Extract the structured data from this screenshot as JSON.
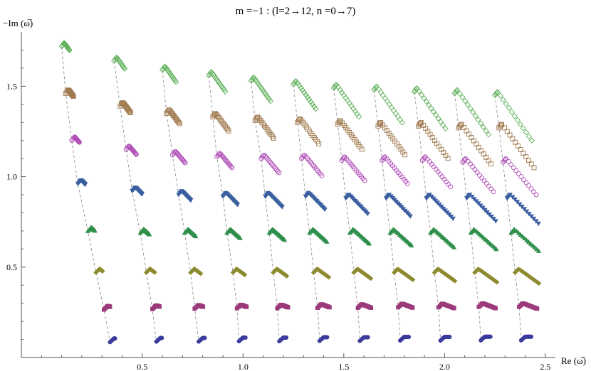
{
  "chart_data": {
    "type": "scatter",
    "title": "m =−1 : (l=2→12, n =0→7)",
    "xlabel": "Re (ω̅)",
    "ylabel": "−Im (ω̅)",
    "xlim": [
      -0.1,
      2.55
    ],
    "ylim": [
      0,
      1.8
    ],
    "x_ticks": [
      "0.5",
      "1.0",
      "1.5",
      "2.0",
      "2.5"
    ],
    "x_tick_values": [
      0.5,
      1.0,
      1.5,
      2.0,
      2.5
    ],
    "y_ticks": [
      "0.5",
      "1.0",
      "1.5"
    ],
    "y_tick_values": [
      0.5,
      1.0,
      1.5
    ],
    "grid": false,
    "legend": "none",
    "l_values": [
      2,
      3,
      4,
      5,
      6,
      7,
      8,
      9,
      10,
      11,
      12
    ],
    "series": [
      {
        "n": 0,
        "marker": "filled-circle",
        "color": "#3b3b9e",
        "x_start": [
          0.34,
          0.57,
          0.78,
          0.98,
          1.18,
          1.38,
          1.58,
          1.78,
          1.98,
          2.18,
          2.38
        ],
        "y_start": [
          0.085,
          0.088,
          0.088,
          0.09,
          0.09,
          0.092,
          0.092,
          0.094,
          0.094,
          0.095,
          0.095
        ],
        "dx": 0.03,
        "dy": 0.0
      },
      {
        "n": 1,
        "marker": "filled-square",
        "color": "#9b3a7a",
        "x_start": [
          0.31,
          0.55,
          0.76,
          0.97,
          1.17,
          1.37,
          1.57,
          1.77,
          1.97,
          2.17,
          2.37
        ],
        "y_start": [
          0.265,
          0.268,
          0.27,
          0.272,
          0.272,
          0.275,
          0.275,
          0.278,
          0.278,
          0.28,
          0.28
        ],
        "dx": 0.07,
        "dy": -0.03
      },
      {
        "n": 2,
        "marker": "filled-diamond",
        "color": "#8c8a2e",
        "x_start": [
          0.27,
          0.52,
          0.74,
          0.95,
          1.15,
          1.35,
          1.55,
          1.75,
          1.95,
          2.15,
          2.35
        ],
        "y_start": [
          0.47,
          0.47,
          0.47,
          0.47,
          0.47,
          0.47,
          0.47,
          0.47,
          0.47,
          0.47,
          0.47
        ],
        "dx": 0.1,
        "dy": -0.08
      },
      {
        "n": 3,
        "marker": "filled-up-triangle",
        "color": "#2e8f4a",
        "x_start": [
          0.23,
          0.49,
          0.71,
          0.92,
          1.13,
          1.33,
          1.53,
          1.73,
          1.93,
          2.13,
          2.33
        ],
        "y_start": [
          0.7,
          0.69,
          0.69,
          0.69,
          0.69,
          0.69,
          0.69,
          0.69,
          0.69,
          0.69,
          0.69
        ],
        "dx": 0.12,
        "dy": -0.12
      },
      {
        "n": 4,
        "marker": "filled-down-triangle",
        "color": "#3a5fa0",
        "x_start": [
          0.18,
          0.45,
          0.68,
          0.9,
          1.11,
          1.31,
          1.51,
          1.71,
          1.91,
          2.11,
          2.31
        ],
        "y_start": [
          0.96,
          0.92,
          0.9,
          0.89,
          0.89,
          0.89,
          0.88,
          0.88,
          0.88,
          0.88,
          0.88
        ],
        "dx": 0.14,
        "dy": -0.16
      },
      {
        "n": 5,
        "marker": "open-circle",
        "color": "#b04fb8",
        "x_start": [
          0.15,
          0.42,
          0.65,
          0.87,
          1.09,
          1.29,
          1.49,
          1.69,
          1.89,
          2.09,
          2.29
        ],
        "y_start": [
          1.2,
          1.15,
          1.12,
          1.11,
          1.1,
          1.1,
          1.09,
          1.09,
          1.09,
          1.08,
          1.08
        ],
        "dx": 0.15,
        "dy": -0.2
      },
      {
        "n": 6,
        "marker": "open-square",
        "color": "#a07a4f",
        "x_start": [
          0.12,
          0.39,
          0.62,
          0.85,
          1.06,
          1.27,
          1.47,
          1.67,
          1.87,
          2.07,
          2.27
        ],
        "y_start": [
          1.46,
          1.39,
          1.35,
          1.33,
          1.31,
          1.3,
          1.29,
          1.28,
          1.28,
          1.27,
          1.27
        ],
        "dx": 0.16,
        "dy": -0.24
      },
      {
        "n": 7,
        "marker": "open-diamond",
        "color": "#5fb05a",
        "x_start": [
          0.1,
          0.36,
          0.6,
          0.83,
          1.04,
          1.25,
          1.45,
          1.65,
          1.85,
          2.05,
          2.25
        ],
        "y_start": [
          1.72,
          1.64,
          1.59,
          1.56,
          1.53,
          1.51,
          1.49,
          1.48,
          1.47,
          1.46,
          1.45
        ],
        "dx": 0.17,
        "dy": -0.27
      }
    ]
  }
}
